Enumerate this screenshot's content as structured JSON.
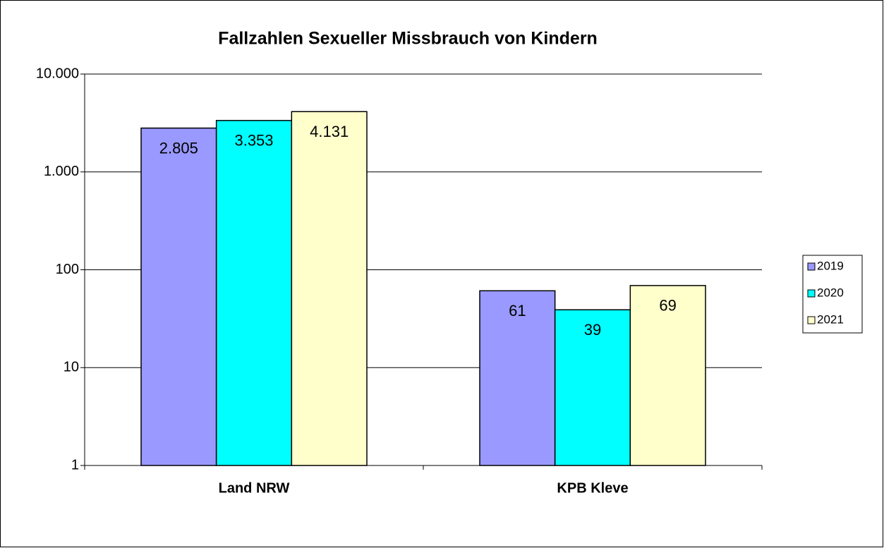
{
  "chart_data": {
    "type": "bar",
    "title": "Fallzahlen Sexueller Missbrauch von Kindern",
    "categories": [
      "Land NRW",
      "KPB Kleve"
    ],
    "series": [
      {
        "name": "2019",
        "color": "#9999ff",
        "values": [
          2805,
          61
        ],
        "value_labels": [
          "2.805",
          "61"
        ]
      },
      {
        "name": "2020",
        "color": "#00ffff",
        "values": [
          3353,
          39
        ],
        "value_labels": [
          "3.353",
          "39"
        ]
      },
      {
        "name": "2021",
        "color": "#ffffcc",
        "values": [
          4131,
          69
        ],
        "value_labels": [
          "4.131",
          "69"
        ]
      }
    ],
    "ylim": [
      1,
      10000
    ],
    "log_scale": true,
    "yticks": [
      1,
      10,
      100,
      {
        "value": 1000,
        "label": "1.000"
      },
      {
        "value": 10000,
        "label": "10.000"
      }
    ],
    "grid": true,
    "legend": "right"
  }
}
